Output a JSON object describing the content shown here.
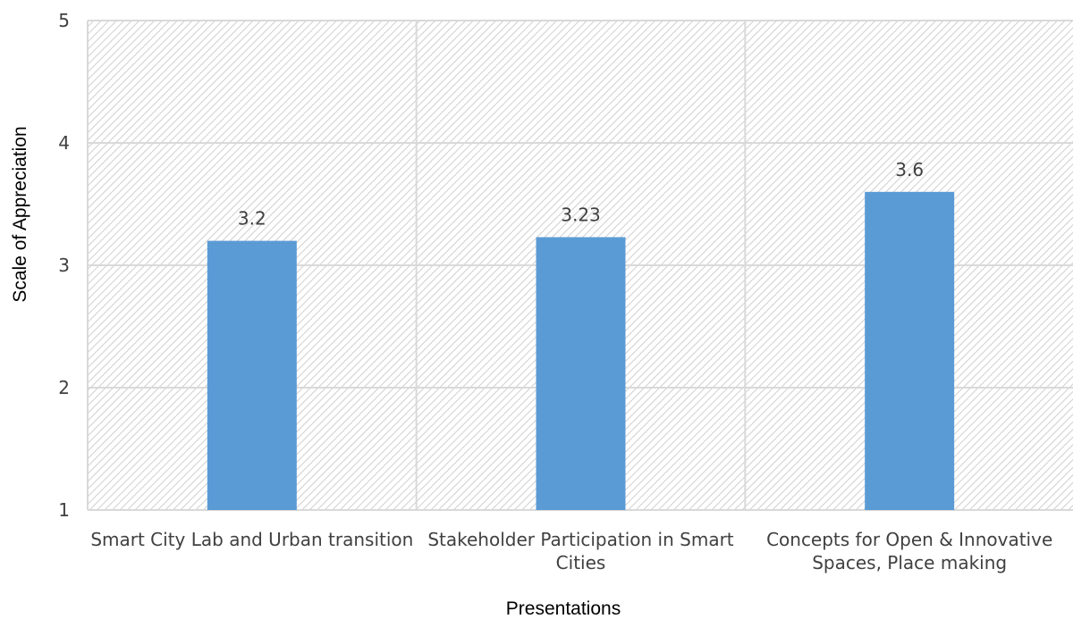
{
  "chart_data": {
    "type": "bar",
    "categories": [
      [
        "Smart City Lab and Urban transition"
      ],
      [
        "Stakeholder Participation in Smart",
        "Cities"
      ],
      [
        "Concepts for Open & Innovative",
        "Spaces, Place making"
      ]
    ],
    "values": [
      3.2,
      3.23,
      3.6
    ],
    "data_labels": [
      "3.2",
      "3.23",
      "3.6"
    ],
    "xlabel": "Presentations",
    "ylabel": "Scale of Appreciation",
    "ylim": [
      1,
      5
    ],
    "yticks": [
      1,
      2,
      3,
      4,
      5
    ],
    "grid": true,
    "legend": "none",
    "bar_color": "#5b9bd5",
    "grid_color": "#d9d9d9",
    "hatch_color": "#d0d0d0"
  }
}
